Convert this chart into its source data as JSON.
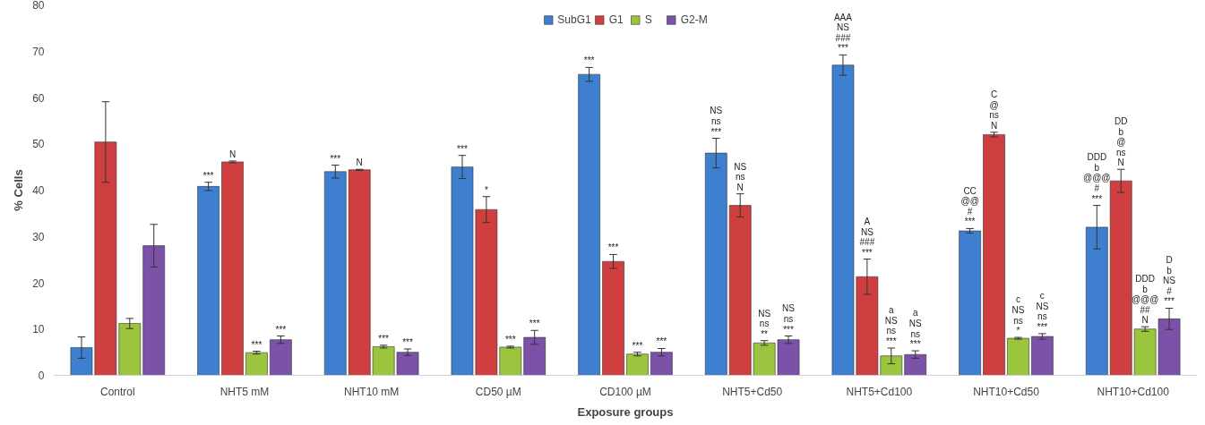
{
  "chart_data": {
    "type": "bar",
    "xlabel": "Exposure groups",
    "ylabel": "% Cells",
    "categories": [
      "Control",
      "NHT5 mM",
      "NHT10 mM",
      "CD50 µM",
      "CD100 µM",
      "NHT5+Cd50",
      "NHT5+Cd100",
      "NHT10+Cd50",
      "NHT10+Cd100"
    ],
    "ylim": [
      0,
      80
    ],
    "yticks": [
      0,
      10,
      20,
      30,
      40,
      50,
      60,
      70,
      80
    ],
    "grid": false,
    "legend": "top",
    "series": [
      {
        "name": "SubG1",
        "color": "#3f7fcf",
        "values": [
          6,
          40.8,
          44,
          45,
          65,
          48,
          67,
          31.2,
          32
        ],
        "errors": [
          2.3,
          0.9,
          1.4,
          2.5,
          1.5,
          3.2,
          2.2,
          0.5,
          4.7
        ],
        "value_labels": [
          null,
          "***",
          "***",
          "***",
          "***",
          "NS\nns\n***",
          "AAA\nNS\n###\n***",
          "CC\n@@\n#\n***",
          "DDD\nb\n@@@\n#\n***"
        ]
      },
      {
        "name": "G1",
        "color": "#cf3f3f",
        "values": [
          50.4,
          46.1,
          44.4,
          35.8,
          24.6,
          36.7,
          21.3,
          52,
          42
        ],
        "errors": [
          8.7,
          0.2,
          0.1,
          2.8,
          1.5,
          2.5,
          3.8,
          0.5,
          2.5
        ],
        "value_labels": [
          null,
          "N",
          "N",
          "*",
          "***",
          "NS\nns\nN",
          "A\nNS\n###\n***",
          "C\n@\nns\nN",
          "DD\nb\n@\nns\nN"
        ]
      },
      {
        "name": "S",
        "color": "#9bc53f",
        "values": [
          11.2,
          4.9,
          6.2,
          6.1,
          4.6,
          7,
          4.2,
          8,
          10
        ],
        "errors": [
          1.1,
          0.3,
          0.3,
          0.2,
          0.4,
          0.5,
          1.7,
          0.2,
          0.5
        ],
        "value_labels": [
          null,
          "***",
          "***",
          "***",
          "***",
          "NS\nns\n**",
          "a\nNS\nns\n***",
          "c\nNS\nns\n*",
          "DDD\nb\n@@@\n##\nN"
        ]
      },
      {
        "name": "G2-M",
        "color": "#7b52a8",
        "values": [
          28,
          7.7,
          5,
          8.2,
          5,
          7.7,
          4.5,
          8.4,
          12.2
        ],
        "errors": [
          4.6,
          0.8,
          0.7,
          1.5,
          0.8,
          0.8,
          0.8,
          0.6,
          2.3
        ],
        "value_labels": [
          null,
          "***",
          "***",
          "***",
          "***",
          "NS\nns\n***",
          "a\nNS\nns\n***",
          "c\nNS\nns\n***",
          "D\nb\nNS\n#\n***"
        ]
      }
    ]
  }
}
